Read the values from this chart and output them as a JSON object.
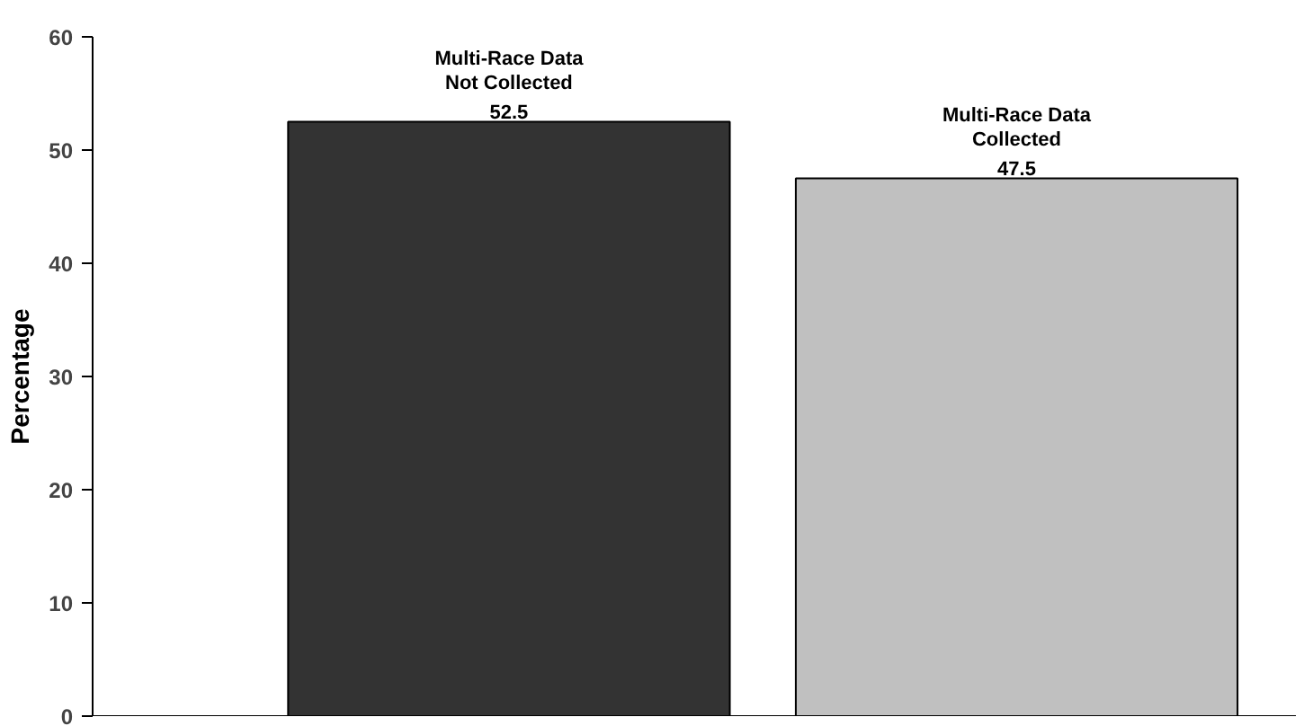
{
  "chart_data": {
    "type": "bar",
    "ylabel": "Percentage",
    "categories": [
      "Multi-Race Data Not Collected",
      "Multi-Race Data Collected"
    ],
    "values": [
      52.5,
      47.5
    ],
    "colors": [
      "#333333",
      "#c0c0c0"
    ],
    "ylim": [
      0,
      60
    ],
    "yticks": [
      0,
      10,
      20,
      30,
      40,
      50,
      60
    ],
    "data_labels": true,
    "grid": false
  }
}
